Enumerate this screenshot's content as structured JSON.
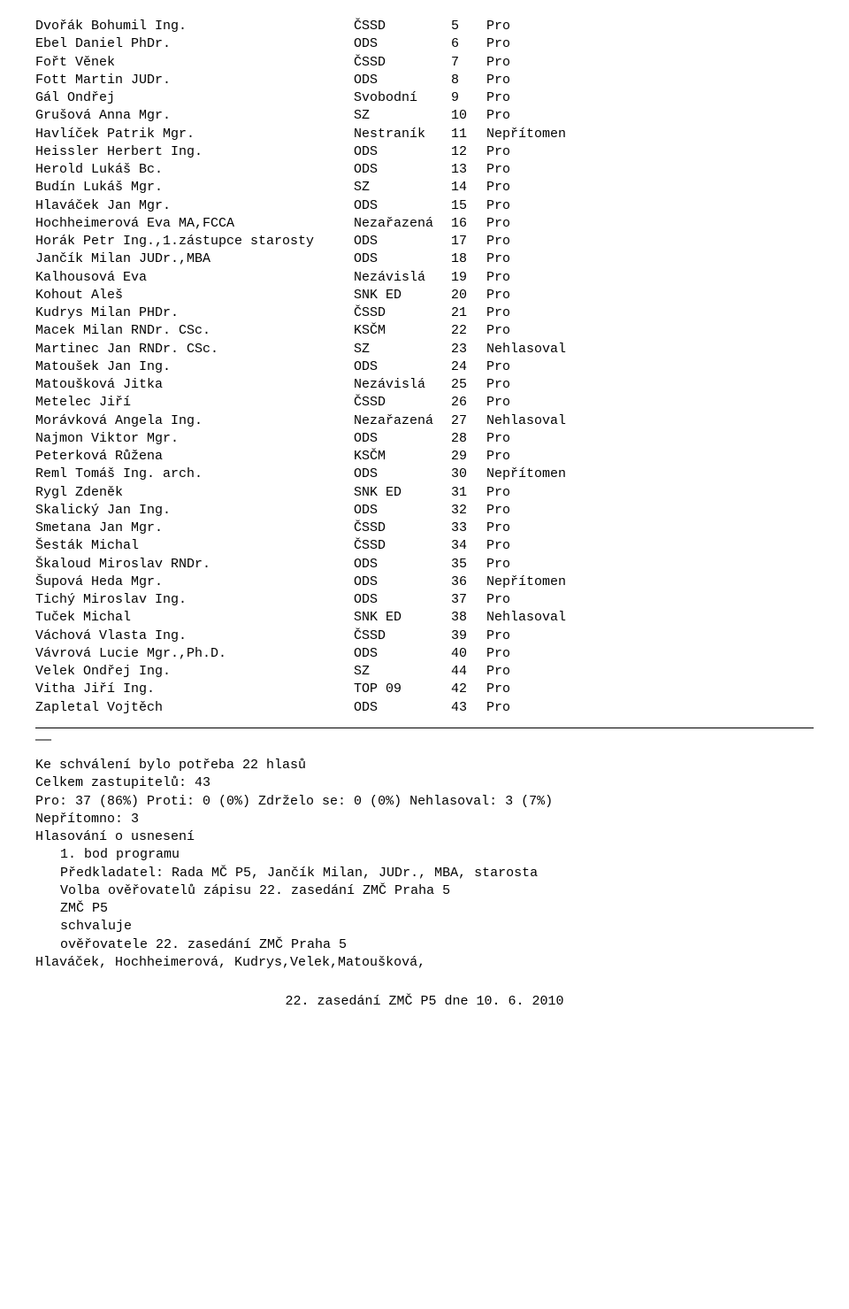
{
  "rows": [
    {
      "name": "Dvořák Bohumil Ing.",
      "party": "ČSSD",
      "num": "5",
      "vote": "Pro"
    },
    {
      "name": "Ebel Daniel PhDr.",
      "party": "ODS",
      "num": "6",
      "vote": "Pro"
    },
    {
      "name": "Fořt Věnek",
      "party": "ČSSD",
      "num": "7",
      "vote": "Pro"
    },
    {
      "name": "Fott Martin JUDr.",
      "party": "ODS",
      "num": "8",
      "vote": "Pro"
    },
    {
      "name": "Gál Ondřej",
      "party": "Svobodní",
      "num": "9",
      "vote": "Pro"
    },
    {
      "name": "Grušová Anna Mgr.",
      "party": "SZ",
      "num": "10",
      "vote": "Pro"
    },
    {
      "name": "Havlíček Patrik Mgr.",
      "party": "Nestraník",
      "num": "11",
      "vote": "Nepřítomen"
    },
    {
      "name": "Heissler Herbert Ing.",
      "party": "ODS",
      "num": "12",
      "vote": "Pro"
    },
    {
      "name": "Herold Lukáš Bc.",
      "party": "ODS",
      "num": "13",
      "vote": "Pro"
    },
    {
      "name": "Budín Lukáš Mgr.",
      "party": "SZ",
      "num": "14",
      "vote": "Pro"
    },
    {
      "name": "Hlaváček Jan Mgr.",
      "party": "ODS",
      "num": "15",
      "vote": "Pro"
    },
    {
      "name": "Hochheimerová Eva MA,FCCA",
      "party": "Nezařazená",
      "num": "16",
      "vote": "Pro"
    },
    {
      "name": "Horák Petr Ing.,1.zástupce starosty",
      "party": "ODS",
      "num": "17",
      "vote": "Pro"
    },
    {
      "name": "Jančík Milan JUDr.,MBA",
      "party": "ODS",
      "num": "18",
      "vote": "Pro"
    },
    {
      "name": "Kalhousová Eva",
      "party": "Nezávislá",
      "num": "19",
      "vote": "Pro"
    },
    {
      "name": "Kohout Aleš",
      "party": "SNK ED",
      "num": "20",
      "vote": "Pro"
    },
    {
      "name": "Kudrys Milan PHDr.",
      "party": "ČSSD",
      "num": "21",
      "vote": "Pro"
    },
    {
      "name": "Macek Milan RNDr. CSc.",
      "party": "KSČM",
      "num": "22",
      "vote": "Pro"
    },
    {
      "name": "Martinec Jan RNDr. CSc.",
      "party": "SZ",
      "num": "23",
      "vote": "Nehlasoval"
    },
    {
      "name": "Matoušek Jan Ing.",
      "party": "ODS",
      "num": "24",
      "vote": "Pro"
    },
    {
      "name": "Matoušková Jitka",
      "party": "Nezávislá",
      "num": "25",
      "vote": "Pro"
    },
    {
      "name": "Metelec Jiří",
      "party": "ČSSD",
      "num": "26",
      "vote": "Pro"
    },
    {
      "name": "Morávková Angela Ing.",
      "party": "Nezařazená",
      "num": "27",
      "vote": "Nehlasoval"
    },
    {
      "name": "Najmon Viktor Mgr.",
      "party": "ODS",
      "num": "28",
      "vote": "Pro"
    },
    {
      "name": "Peterková Růžena",
      "party": "KSČM",
      "num": "29",
      "vote": "Pro"
    },
    {
      "name": "Reml Tomáš Ing. arch.",
      "party": "ODS",
      "num": "30",
      "vote": "Nepřítomen"
    },
    {
      "name": "Rygl Zdeněk",
      "party": "SNK ED",
      "num": "31",
      "vote": "Pro"
    },
    {
      "name": "Skalický Jan Ing.",
      "party": "ODS",
      "num": "32",
      "vote": "Pro"
    },
    {
      "name": "Smetana Jan Mgr.",
      "party": "ČSSD",
      "num": "33",
      "vote": "Pro"
    },
    {
      "name": "Šesták Michal",
      "party": "ČSSD",
      "num": "34",
      "vote": "Pro"
    },
    {
      "name": "Škaloud Miroslav RNDr.",
      "party": "ODS",
      "num": "35",
      "vote": "Pro"
    },
    {
      "name": "Šupová Heda Mgr.",
      "party": "ODS",
      "num": "36",
      "vote": "Nepřítomen"
    },
    {
      "name": "Tichý Miroslav Ing.",
      "party": "ODS",
      "num": "37",
      "vote": "Pro"
    },
    {
      "name": "Tuček Michal",
      "party": "SNK ED",
      "num": "38",
      "vote": "Nehlasoval"
    },
    {
      "name": "Váchová Vlasta Ing.",
      "party": "ČSSD",
      "num": "39",
      "vote": "Pro"
    },
    {
      "name": "Vávrová Lucie Mgr.,Ph.D.",
      "party": "ODS",
      "num": "40",
      "vote": "Pro"
    },
    {
      "name": "Velek Ondřej Ing.",
      "party": "SZ",
      "num": "44",
      "vote": "Pro"
    },
    {
      "name": "Vitha Jiří Ing.",
      "party": "TOP 09",
      "num": "42",
      "vote": "Pro"
    },
    {
      "name": "Zapletal Vojtěch",
      "party": "ODS",
      "num": "43",
      "vote": "Pro"
    }
  ],
  "short_dash": "——",
  "summary": {
    "needed": "Ke schválení bylo potřeba 22 hlasů",
    "total": "Celkem zastupitelů: 43",
    "result": "Pro: 37 (86%)  Proti: 0 (0%)  Zdrželo se: 0 (0%)  Nehlasoval: 3 (7%)",
    "absent": "Nepřítomno: 3",
    "vote_on": "Hlasování o usnesení",
    "point": "1. bod programu",
    "presenter": "Předkladatel: Rada MČ P5, Jančík Milan, JUDr., MBA, starosta",
    "item": "Volba ověřovatelů zápisu 22. zasedání ZMČ Praha 5",
    "org": "ZMČ P5",
    "approves": "schvaluje",
    "approves_what": "ověřovatele 22. zasedání ZMČ Praha 5",
    "names": "Hlaváček, Hochheimerová, Kudrys,Velek,Matoušková,"
  },
  "footer": "22. zasedání ZMČ P5 dne 10. 6. 2010"
}
